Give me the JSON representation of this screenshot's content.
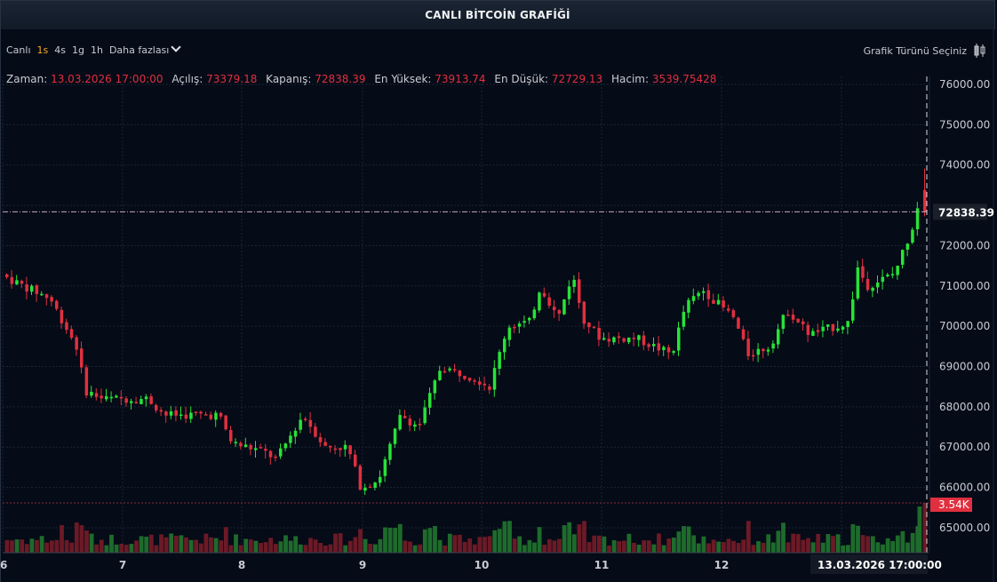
{
  "window": {
    "title": "CANLI BİTCOİN GRAFİĞİ"
  },
  "toolbar": {
    "intervals": [
      {
        "label": "Canlı",
        "active": false
      },
      {
        "label": "1s",
        "active": true
      },
      {
        "label": "4s",
        "active": false
      },
      {
        "label": "1g",
        "active": false
      },
      {
        "label": "1h",
        "active": false
      }
    ],
    "more_label": "Daha fazlası",
    "chart_type_label": "Grafik Türünü Seçiniz"
  },
  "ohlc": {
    "time_label": "Zaman:",
    "time_value": "13.03.2026 17:00:00",
    "open_label": "Açılış:",
    "open_value": "73379.18",
    "close_label": "Kapanış:",
    "close_value": "72838.39",
    "high_label": "En Yüksek:",
    "high_value": "73913.74",
    "low_label": "En Düşük:",
    "low_value": "72729.13",
    "volume_label": "Hacim:",
    "volume_value": "3539.75428"
  },
  "colors": {
    "up": "#27e337",
    "down": "#e0303f",
    "vol_up": "#1e6b2c",
    "vol_down": "#6b1a26",
    "background": "#050b17",
    "grid": "#1c2535"
  },
  "crosshair": {
    "price_label": "72838.39",
    "volume_label": "3.54K",
    "time_label": "13.03.2026   17:00:00"
  },
  "chart_data": {
    "type": "candlestick",
    "title": "CANLI BİTCOİN GRAFİĞİ",
    "interval": "1s",
    "yaxis": {
      "ticks": [
        76000,
        75000,
        74000,
        73000,
        72000,
        71000,
        70000,
        69000,
        68000,
        67000,
        66000,
        65000
      ],
      "range": [
        64500,
        76100
      ]
    },
    "xaxis": {
      "ticks": [
        "6",
        "7",
        "8",
        "9",
        "10",
        "11",
        "12",
        "13.03.2026 17:00:00"
      ]
    },
    "approx_daily_path": [
      {
        "day": "6",
        "start": 71200,
        "end": 70600
      },
      {
        "day": "7",
        "start": 68400,
        "end": 67900
      },
      {
        "day": "8",
        "start": 67200,
        "end": 66900
      },
      {
        "day": "9",
        "start": 67100,
        "end": 69000
      },
      {
        "day": "10",
        "start": 68600,
        "end": 71000
      },
      {
        "day": "11",
        "start": 70000,
        "end": 69500
      },
      {
        "day": "12",
        "start": 70600,
        "end": 69700
      },
      {
        "day": "13",
        "start": 70000,
        "end": 72838
      }
    ],
    "last_candle": {
      "time": "13.03.2026 17:00:00",
      "open": 73379.18,
      "high": 73913.74,
      "low": 72729.13,
      "close": 72838.39,
      "volume": 3539.75428
    },
    "grid": true
  }
}
